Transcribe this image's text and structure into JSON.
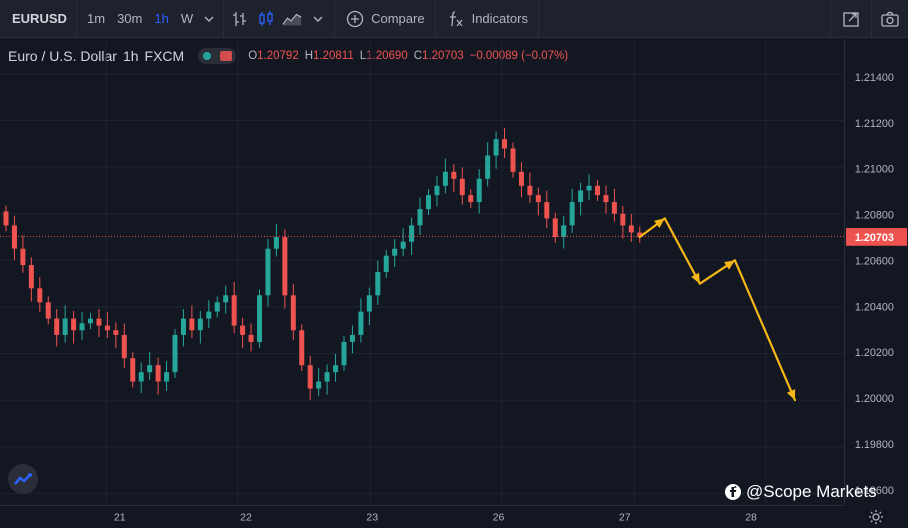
{
  "toolbar": {
    "symbol": "EURUSD",
    "intervals": [
      {
        "label": "1m",
        "active": false
      },
      {
        "label": "30m",
        "active": false
      },
      {
        "label": "1h",
        "active": true
      },
      {
        "label": "W",
        "active": false
      }
    ],
    "compare_label": "Compare",
    "indicators_label": "Indicators",
    "icons": [
      "chevron-down-icon",
      "bar-chart-icon",
      "candle-chart-icon",
      "area-chart-icon",
      "plus-circle-icon",
      "fx-icon",
      "fullscreen-icon",
      "camera-icon"
    ]
  },
  "legend": {
    "name": "Euro / U.S. Dollar",
    "interval": "1h",
    "exchange": "FXCM",
    "o_key": "O",
    "o": "1.20792",
    "h_key": "H",
    "h": "1.20811",
    "l_key": "L",
    "l": "1.20690",
    "c_key": "C",
    "c": "1.20703",
    "change": "−0.00089 (−0.07%)"
  },
  "watermark": "@Scope Markets",
  "colors": {
    "up": "#26a69a",
    "down": "#ef5350",
    "arrow": "#f5b618",
    "bg": "#131722",
    "grid": "#1f2330"
  },
  "chart_data": {
    "type": "candlestick",
    "y_ticks": [
      "1.21400",
      "1.21200",
      "1.21000",
      "1.20800",
      "1.20600",
      "1.20400",
      "1.20200",
      "1.20000",
      "1.19800",
      "1.19600"
    ],
    "y_tick_values": [
      1.214,
      1.212,
      1.21,
      1.208,
      1.206,
      1.204,
      1.202,
      1.2,
      1.198,
      1.196
    ],
    "x_ticks": [
      "21",
      "22",
      "23",
      "26",
      "27",
      "28"
    ],
    "ylim": [
      1.1955,
      1.2155
    ],
    "last_price_label": "1.20703",
    "last_price": 1.20703,
    "candles_close": [
      1.2075,
      1.2065,
      1.2058,
      1.2048,
      1.2042,
      1.2035,
      1.2028,
      1.2035,
      1.203,
      1.2033,
      1.2035,
      1.2032,
      1.203,
      1.2028,
      1.2018,
      1.2008,
      1.2012,
      1.2015,
      1.2008,
      1.2012,
      1.2028,
      1.2035,
      1.203,
      1.2035,
      1.2038,
      1.2042,
      1.2045,
      1.2032,
      1.2028,
      1.2025,
      1.2045,
      1.2065,
      1.207,
      1.2045,
      1.203,
      1.2015,
      1.2005,
      1.2008,
      1.2012,
      1.2015,
      1.2025,
      1.2028,
      1.2038,
      1.2045,
      1.2055,
      1.2062,
      1.2065,
      1.2068,
      1.2075,
      1.2082,
      1.2088,
      1.2092,
      1.2098,
      1.2095,
      1.2088,
      1.2085,
      1.2095,
      1.2105,
      1.2112,
      1.2108,
      1.2098,
      1.2092,
      1.2088,
      1.2085,
      1.2078,
      1.207,
      1.2075,
      1.2085,
      1.209,
      1.2092,
      1.2088,
      1.2085,
      1.208,
      1.2075,
      1.2072,
      1.207
    ],
    "projection_path": [
      [
        0,
        1.207
      ],
      [
        0.5,
        1.2078
      ],
      [
        1.2,
        1.205
      ],
      [
        1.9,
        1.206
      ],
      [
        3.1,
        1.2
      ]
    ],
    "projection_note": "arrow projection — x in candle-steps beyond last candle scaled by 8"
  }
}
